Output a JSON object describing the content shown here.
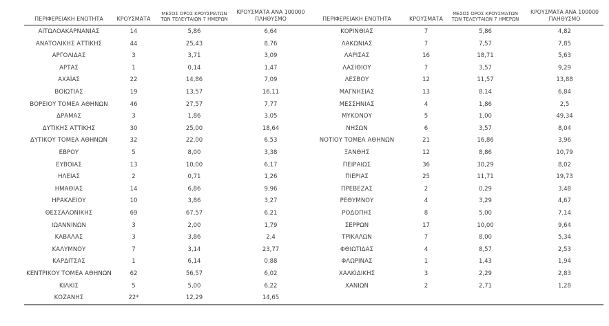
{
  "table": {
    "columns": {
      "region": "ΠΕΡΙΦΕΡΕΙΑΚΗ ΕΝΟΤΗΤΑ",
      "cases": "ΚΡΟΥΣΜΑΤΑ",
      "avg_line1": "ΜΕΣΟΣ ΟΡΟΣ ΚΡΟΥΣΜΑΤΩΝ",
      "avg_line2": "ΤΩΝ ΤΕΛΕΥΤΑΙΩΝ 7 ΗΜΕΡΩΝ",
      "per100k_line1": "ΚΡΟΥΣΜΑΤΑ ΑΝΑ 100000",
      "per100k_line2": "ΠΛΗΘΥΣΜΟ"
    },
    "left_rows": [
      {
        "region": "ΑΙΤΩΛΟΑΚΑΡΝΑΝΙΑΣ",
        "cases": "14",
        "avg7": "5,86",
        "per100k": "6,64"
      },
      {
        "region": "ΑΝΑΤΟΛΙΚΗΣ ΑΤΤΙΚΗΣ",
        "cases": "44",
        "avg7": "25,43",
        "per100k": "8,76"
      },
      {
        "region": "ΑΡΓΟΛΙΔΑΣ",
        "cases": "3",
        "avg7": "3,71",
        "per100k": "3,09"
      },
      {
        "region": "ΑΡΤΑΣ",
        "cases": "1",
        "avg7": "0,14",
        "per100k": "1,47"
      },
      {
        "region": "ΑΧΑΪΑΣ",
        "cases": "22",
        "avg7": "14,86",
        "per100k": "7,09"
      },
      {
        "region": "ΒΟΙΩΤΙΑΣ",
        "cases": "19",
        "avg7": "13,57",
        "per100k": "16,11"
      },
      {
        "region": "ΒΟΡΕΙΟΥ ΤΟΜΕΑ ΑΘΗΝΩΝ",
        "cases": "46",
        "avg7": "27,57",
        "per100k": "7,77"
      },
      {
        "region": "ΔΡΑΜΑΣ",
        "cases": "3",
        "avg7": "1,86",
        "per100k": "3,05"
      },
      {
        "region": "ΔΥΤΙΚΗΣ ΑΤΤΙΚΗΣ",
        "cases": "30",
        "avg7": "25,00",
        "per100k": "18,64"
      },
      {
        "region": "ΔΥΤΙΚΟΥ ΤΟΜΕΑ ΑΘΗΝΩΝ",
        "cases": "32",
        "avg7": "22,00",
        "per100k": "6,53"
      },
      {
        "region": "ΕΒΡΟΥ",
        "cases": "5",
        "avg7": "8,00",
        "per100k": "3,38"
      },
      {
        "region": "ΕΥΒΟΙΑΣ",
        "cases": "13",
        "avg7": "10,00",
        "per100k": "6,17"
      },
      {
        "region": "ΗΛΕΙΑΣ",
        "cases": "2",
        "avg7": "0,71",
        "per100k": "1,26"
      },
      {
        "region": "ΗΜΑΘΙΑΣ",
        "cases": "14",
        "avg7": "6,86",
        "per100k": "9,96"
      },
      {
        "region": "ΗΡΑΚΛΕΙΟΥ",
        "cases": "10",
        "avg7": "3,86",
        "per100k": "3,27"
      },
      {
        "region": "ΘΕΣΣΑΛΟΝΙΚΗΣ",
        "cases": "69",
        "avg7": "67,57",
        "per100k": "6,21"
      },
      {
        "region": "ΙΩΑΝΝΙΝΩΝ",
        "cases": "3",
        "avg7": "2,00",
        "per100k": "1,79"
      },
      {
        "region": "ΚΑΒΑΛΑΣ",
        "cases": "3",
        "avg7": "3,86",
        "per100k": "2,4"
      },
      {
        "region": "ΚΑΛΥΜΝΟΥ",
        "cases": "7",
        "avg7": "3,14",
        "per100k": "23,77"
      },
      {
        "region": "ΚΑΡΔΙΤΣΑΣ",
        "cases": "1",
        "avg7": "6,14",
        "per100k": "0,88"
      },
      {
        "region": "ΚΕΝΤΡΙΚΟΥ ΤΟΜΕΑ ΑΘΗΝΩΝ",
        "cases": "62",
        "avg7": "56,57",
        "per100k": "6,02"
      },
      {
        "region": "ΚΙΛΚΙΣ",
        "cases": "5",
        "avg7": "5,00",
        "per100k": "6,22"
      },
      {
        "region": "ΚΟΖΑΝΗΣ",
        "cases": "22*",
        "avg7": "12,29",
        "per100k": "14,65"
      }
    ],
    "right_rows": [
      {
        "region": "ΚΟΡΙΝΘΙΑΣ",
        "cases": "7",
        "avg7": "5,86",
        "per100k": "4,82"
      },
      {
        "region": "ΛΑΚΩΝΙΑΣ",
        "cases": "7",
        "avg7": "7,57",
        "per100k": "7,85"
      },
      {
        "region": "ΛΑΡΙΣΑΣ",
        "cases": "16",
        "avg7": "18,71",
        "per100k": "5,63"
      },
      {
        "region": "ΛΑΣΙΘΙΟΥ",
        "cases": "7",
        "avg7": "3,57",
        "per100k": "9,29"
      },
      {
        "region": "ΛΕΣΒΟΥ",
        "cases": "12",
        "avg7": "11,57",
        "per100k": "13,88"
      },
      {
        "region": "ΜΑΓΝΗΣΙΑΣ",
        "cases": "13",
        "avg7": "8,14",
        "per100k": "6,84"
      },
      {
        "region": "ΜΕΣΣΗΝΙΑΣ",
        "cases": "4",
        "avg7": "1,86",
        "per100k": "2,5"
      },
      {
        "region": "ΜΥΚΟΝΟΥ",
        "cases": "5",
        "avg7": "1,00",
        "per100k": "49,34"
      },
      {
        "region": "ΝΗΣΩΝ",
        "cases": "6",
        "avg7": "3,57",
        "per100k": "8,04"
      },
      {
        "region": "ΝΟΤΙΟΥ ΤΟΜΕΑ ΑΘΗΝΩΝ",
        "cases": "21",
        "avg7": "16,86",
        "per100k": "3,96"
      },
      {
        "region": "ΞΑΝΘΗΣ",
        "cases": "12",
        "avg7": "8,86",
        "per100k": "10,79"
      },
      {
        "region": "ΠΕΙΡΑΙΩΣ",
        "cases": "36",
        "avg7": "30,29",
        "per100k": "8,02"
      },
      {
        "region": "ΠΙΕΡΙΑΣ",
        "cases": "25",
        "avg7": "11,71",
        "per100k": "19,73"
      },
      {
        "region": "ΠΡΕΒΕΖΑΣ",
        "cases": "2",
        "avg7": "0,29",
        "per100k": "3,48"
      },
      {
        "region": "ΡΕΘΥΜΝΟΥ",
        "cases": "4",
        "avg7": "3,29",
        "per100k": "4,67"
      },
      {
        "region": "ΡΟΔΟΠΗΣ",
        "cases": "8",
        "avg7": "5,00",
        "per100k": "7,14"
      },
      {
        "region": "ΣΕΡΡΩΝ",
        "cases": "17",
        "avg7": "10,00",
        "per100k": "9,64"
      },
      {
        "region": "ΤΡΙΚΑΛΩΝ",
        "cases": "7",
        "avg7": "8,00",
        "per100k": "5,34"
      },
      {
        "region": "ΦΘΙΩΤΙΔΑΣ",
        "cases": "4",
        "avg7": "8,57",
        "per100k": "2,53"
      },
      {
        "region": "ΦΛΩΡΙΝΑΣ",
        "cases": "1",
        "avg7": "1,43",
        "per100k": "1,94"
      },
      {
        "region": "ΧΑΛΚΙΔΙΚΗΣ",
        "cases": "3",
        "avg7": "2,29",
        "per100k": "2,83"
      },
      {
        "region": "ΧΑΝΙΩΝ",
        "cases": "2",
        "avg7": "2,71",
        "per100k": "1,28"
      }
    ]
  },
  "colors": {
    "text": "#3d3d3d",
    "header_rule": "#1a1a1a",
    "bottom_rule": "#858585"
  }
}
